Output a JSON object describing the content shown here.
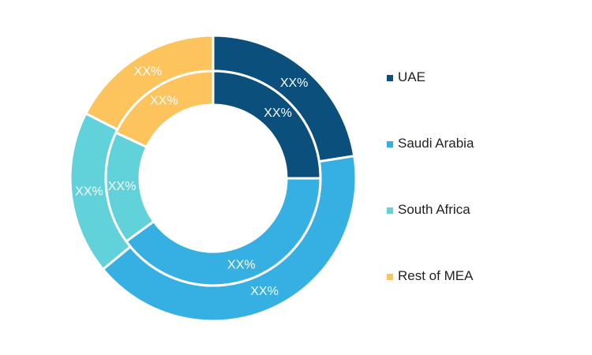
{
  "colors": {
    "uae": "#0b4f7c",
    "saudi": "#36b0e3",
    "south_africa": "#62d2da",
    "rest": "#fdc45e"
  },
  "chart_data": {
    "type": "donut",
    "title": "",
    "categories": [
      "UAE",
      "Saudi Arabia",
      "South Africa",
      "Rest of MEA"
    ],
    "series": [
      {
        "ring": "outer",
        "values": [
          22.5,
          41.5,
          18.5,
          17.5
        ],
        "labels": [
          "XX%",
          "XX%",
          "XX%",
          "XX%"
        ]
      },
      {
        "ring": "inner",
        "values": [
          25,
          40,
          17,
          18
        ],
        "labels": [
          "XX%",
          "XX%",
          "XX%",
          "XX%"
        ]
      }
    ],
    "legend": {
      "position": "right",
      "items": [
        {
          "label": "UAE",
          "color": "#0b4f7c"
        },
        {
          "label": "Saudi Arabia",
          "color": "#36b0e3"
        },
        {
          "label": "South Africa",
          "color": "#62d2da"
        },
        {
          "label": "Rest of MEA",
          "color": "#fdc45e"
        }
      ]
    }
  }
}
